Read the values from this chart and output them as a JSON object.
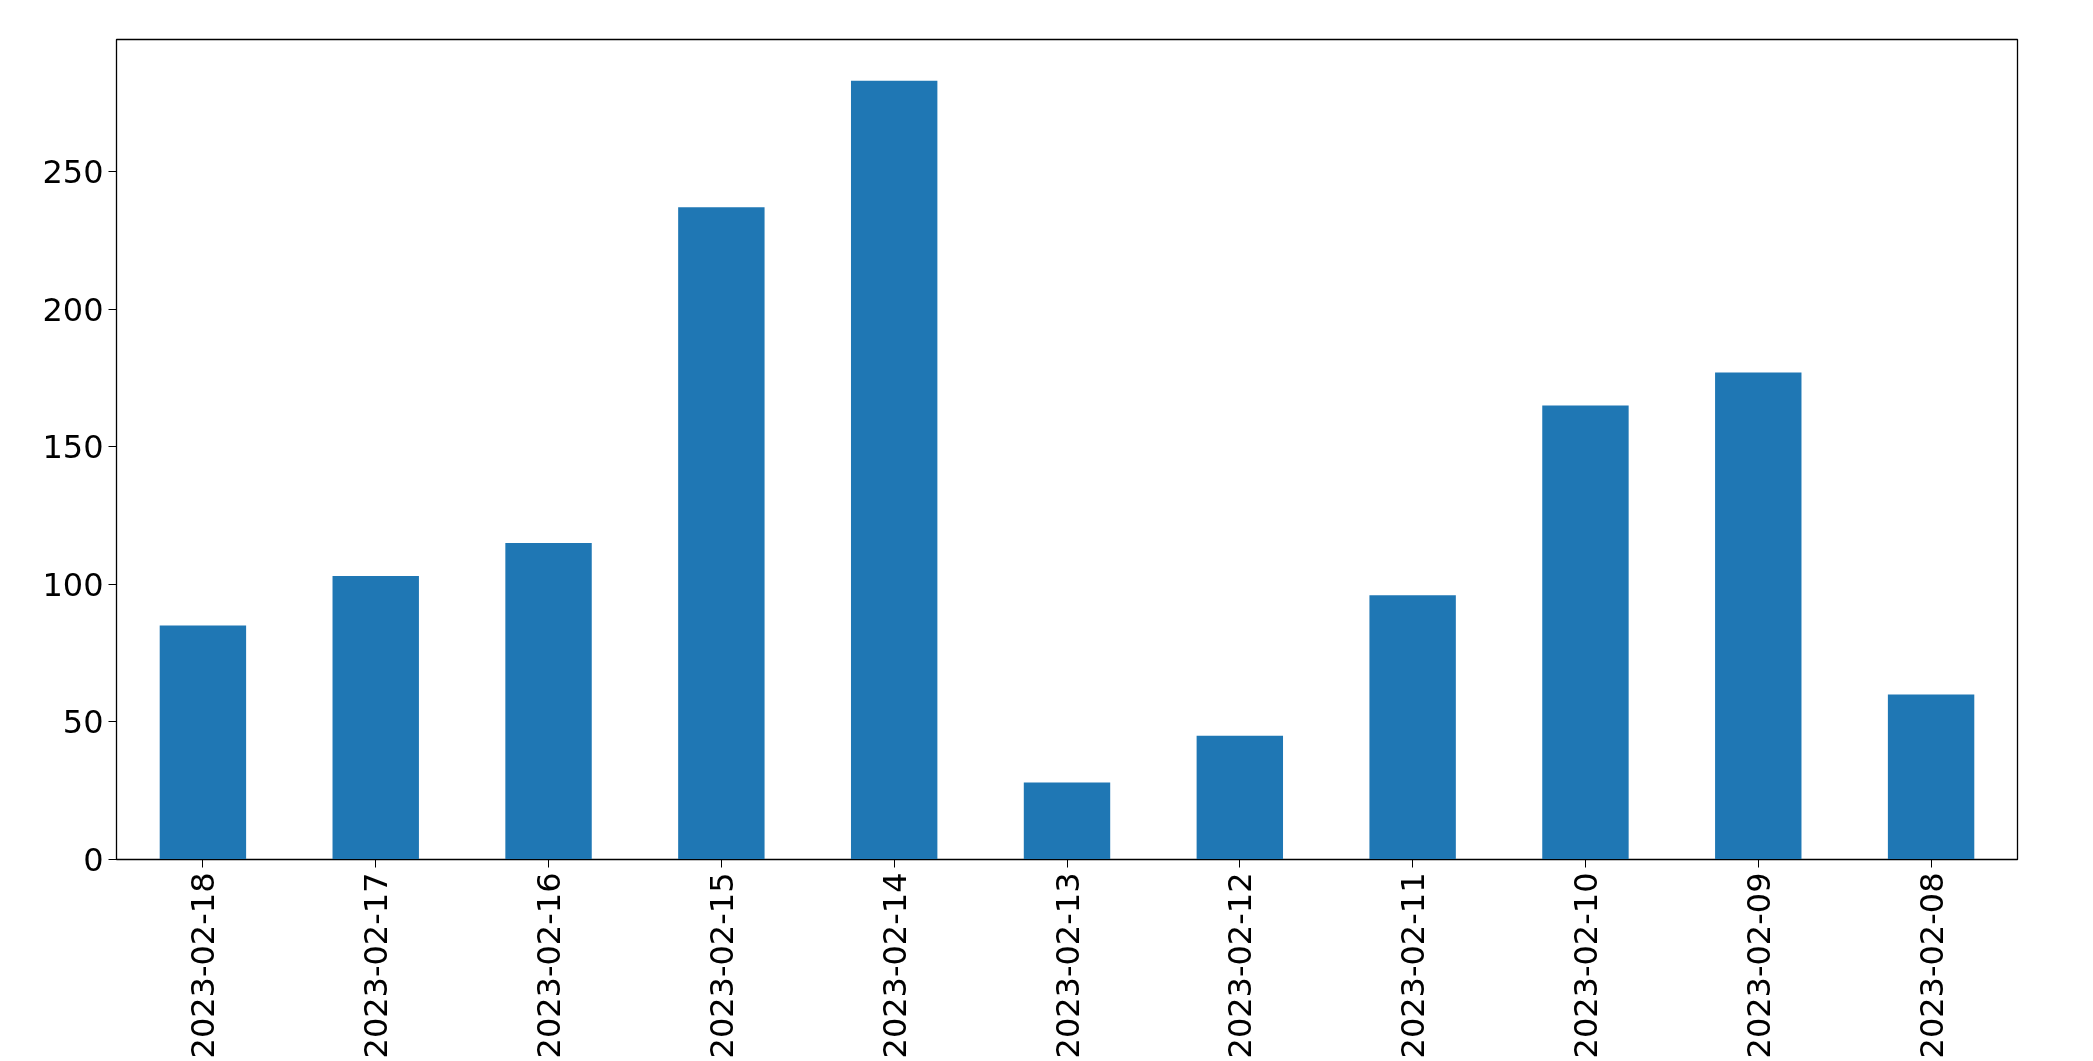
{
  "chart_data": {
    "type": "bar",
    "categories": [
      "2023-02-18",
      "2023-02-17",
      "2023-02-16",
      "2023-02-15",
      "2023-02-14",
      "2023-02-13",
      "2023-02-12",
      "2023-02-11",
      "2023-02-10",
      "2023-02-09",
      "2023-02-08"
    ],
    "values": [
      85,
      103,
      115,
      237,
      283,
      28,
      45,
      96,
      165,
      177,
      60
    ],
    "color": "#1f77b4",
    "ylim": [
      0,
      298
    ],
    "yticks": [
      0,
      50,
      100,
      150,
      200,
      250
    ],
    "grid": false
  }
}
